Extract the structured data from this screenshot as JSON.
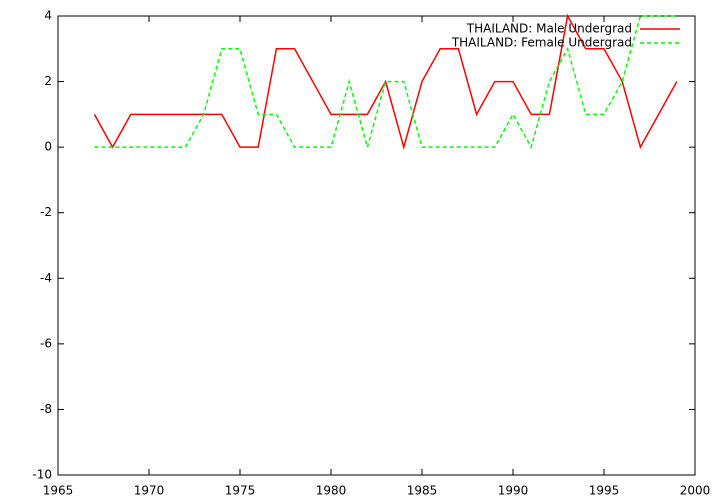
{
  "chart_data": {
    "type": "line",
    "x": [
      1967,
      1968,
      1969,
      1970,
      1971,
      1972,
      1973,
      1974,
      1975,
      1976,
      1977,
      1978,
      1979,
      1980,
      1981,
      1982,
      1983,
      1984,
      1985,
      1986,
      1987,
      1988,
      1989,
      1990,
      1991,
      1992,
      1993,
      1994,
      1995,
      1996,
      1997,
      1998,
      1999
    ],
    "series": [
      {
        "name": "THAILAND: Male Undergrad",
        "color": "#ff0000",
        "dash": false,
        "values": [
          1,
          0,
          1,
          1,
          1,
          1,
          1,
          1,
          0,
          0,
          3,
          3,
          2,
          1,
          1,
          1,
          2,
          0,
          2,
          3,
          3,
          1,
          2,
          2,
          1,
          1,
          4,
          3,
          3,
          2,
          0,
          1,
          2
        ]
      },
      {
        "name": "THAILAND: Female Undergrad",
        "color": "#00ff00",
        "dash": true,
        "values": [
          0,
          0,
          0,
          0,
          0,
          0,
          1,
          3,
          3,
          1,
          1,
          0,
          0,
          0,
          2,
          0,
          2,
          2,
          0,
          0,
          0,
          0,
          0,
          1,
          0,
          2,
          3,
          1,
          1,
          2,
          4,
          4,
          4
        ]
      }
    ],
    "xlim": [
      1965,
      2000
    ],
    "xticks": [
      1965,
      1970,
      1975,
      1980,
      1985,
      1990,
      1995,
      2000
    ],
    "ylim": [
      -10,
      4
    ],
    "yticks": [
      -10,
      -8,
      -6,
      -4,
      -2,
      0,
      2,
      4
    ],
    "legend": "top-right"
  }
}
